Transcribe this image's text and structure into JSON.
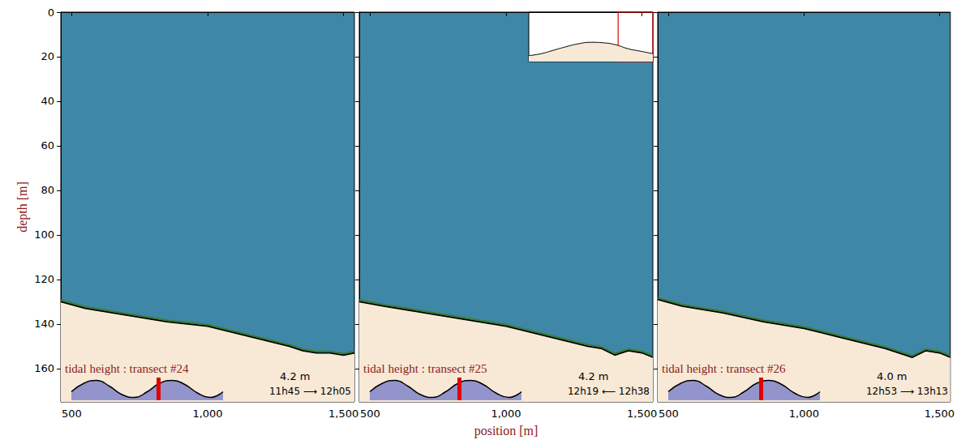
{
  "chart_data": {
    "type": "line",
    "x_label": "position [m]",
    "y_label": "depth [m]",
    "xlim": [
      460,
      1540
    ],
    "ylim": [
      0,
      175
    ],
    "xticks": [
      500,
      1000,
      1500
    ],
    "yticks": [
      0,
      20,
      40,
      60,
      80,
      100,
      120,
      140,
      160
    ],
    "tide_curve": {
      "x": [
        0,
        1,
        2,
        3,
        4,
        5,
        6,
        7,
        8,
        9,
        10,
        11,
        12
      ],
      "values": [
        0.3,
        0.6,
        0.7,
        0.5,
        0.2,
        0.1,
        0.3,
        0.6,
        0.7,
        0.55,
        0.25,
        0.1,
        0.3
      ],
      "xlim": [
        0,
        12
      ],
      "ylim": [
        0,
        0.8
      ]
    },
    "panels": [
      {
        "title": "tidal height : transect #24",
        "height_label": "4.2 m",
        "time_label": "11h45 ⟶ 12h05",
        "tide_marker": 6.9,
        "seabed": {
          "x": [
            460,
            550,
            700,
            850,
            1000,
            1100,
            1200,
            1300,
            1350,
            1400,
            1450,
            1500,
            1540
          ],
          "depth": [
            130,
            133,
            136,
            139,
            141,
            144,
            147,
            150,
            152,
            153,
            153,
            154,
            153
          ]
        }
      },
      {
        "title": "tidal height : transect #25",
        "height_label": "4.2 m",
        "time_label": "12h19 ⟵ 12h38",
        "tide_marker": 7.1,
        "seabed": {
          "x": [
            460,
            550,
            700,
            850,
            1000,
            1100,
            1200,
            1300,
            1350,
            1400,
            1450,
            1500,
            1540
          ],
          "depth": [
            130,
            132,
            135,
            138,
            141,
            144,
            147,
            150,
            151,
            154,
            152,
            153,
            155
          ]
        },
        "overview": {
          "x": [
            0,
            1,
            2,
            3,
            4,
            5,
            6,
            7,
            8,
            9,
            10
          ],
          "height": [
            1.2,
            1.6,
            2.3,
            3.0,
            3.6,
            3.9,
            3.8,
            3.4,
            2.6,
            2.1,
            1.6
          ],
          "xlim": [
            0,
            10
          ],
          "ylim": [
            0,
            10
          ],
          "box": [
            7.2,
            10
          ]
        }
      },
      {
        "title": "tidal height : transect #26",
        "height_label": "4.0 m",
        "time_label": "12h53 ⟶ 13h13",
        "tide_marker": 7.3,
        "seabed": {
          "x": [
            460,
            550,
            700,
            850,
            1000,
            1100,
            1200,
            1300,
            1350,
            1400,
            1450,
            1500,
            1540
          ],
          "depth": [
            129,
            132,
            135,
            139,
            142,
            145,
            148,
            151,
            153,
            155,
            152,
            153,
            155
          ]
        }
      }
    ]
  }
}
